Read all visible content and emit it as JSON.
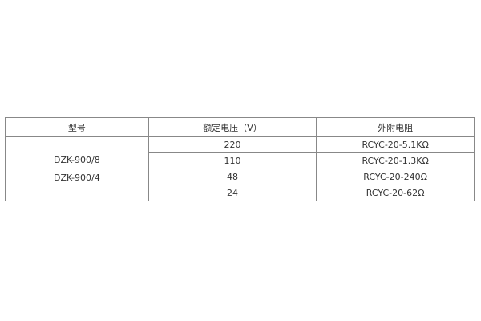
{
  "table": {
    "headers": [
      "型号",
      "额定电压（V）",
      "外附电阻"
    ],
    "models": [
      "DZK-900/8",
      "DZK-900/4"
    ],
    "rows": [
      {
        "voltage": "220",
        "resistor": "RCYC-20-5.1KΩ"
      },
      {
        "voltage": "110",
        "resistor": "RCYC-20-1.3KΩ"
      },
      {
        "voltage": "48",
        "resistor": "RCYC-20-240Ω"
      },
      {
        "voltage": "24",
        "resistor": "RCYC-20-62Ω"
      }
    ]
  }
}
